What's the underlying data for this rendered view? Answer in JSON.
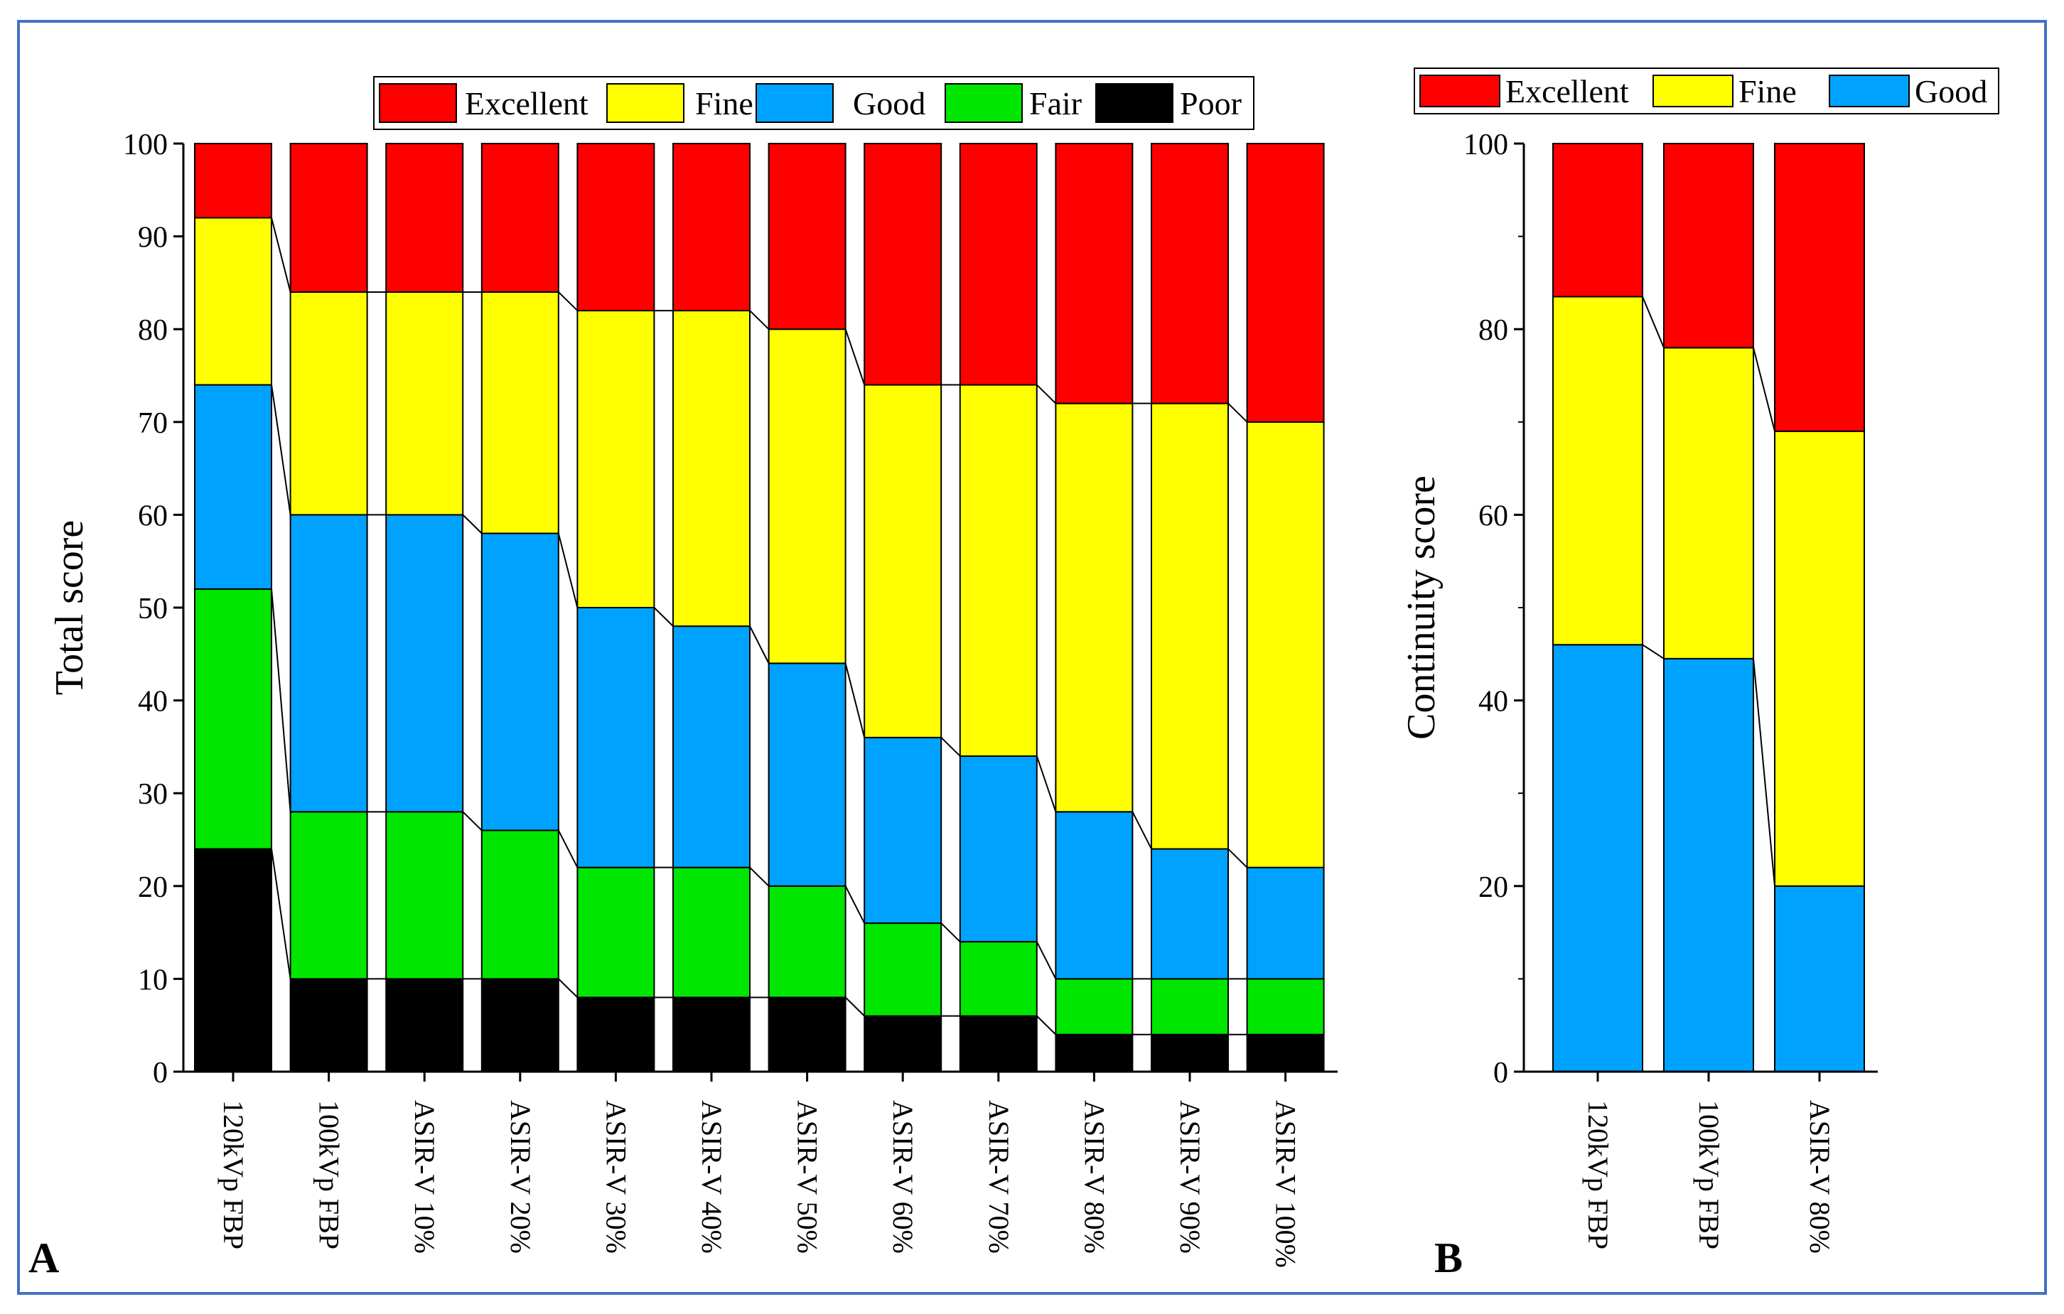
{
  "colors": {
    "Excellent": "#ff0000",
    "Fine": "#ffff00",
    "Good": "#00a2ff",
    "Fair": "#00e600",
    "Poor": "#000000",
    "frame": "#4472c4"
  },
  "chart_data": [
    {
      "type": "bar",
      "stacked": true,
      "panel_label": "A",
      "ylabel": "Total score",
      "xlabel": "",
      "ylim": [
        0,
        100
      ],
      "yticks": [
        0,
        10,
        20,
        30,
        40,
        50,
        60,
        70,
        80,
        90,
        100
      ],
      "legend": [
        "Excellent",
        "Fine",
        "Good",
        "Fair",
        "Poor"
      ],
      "legend_position": "top",
      "categories": [
        "120kVp FBP",
        "100kVp FBP",
        "ASIR-V 10%",
        "ASIR-V 20%",
        "ASIR-V 30%",
        "ASIR-V 40%",
        "ASIR-V 50%",
        "ASIR-V 60%",
        "ASIR-V 70%",
        "ASIR-V 80%",
        "ASIR-V 90%",
        "ASIR-V 100%"
      ],
      "series": [
        {
          "name": "Poor",
          "values": [
            24,
            10,
            10,
            10,
            8,
            8,
            8,
            6,
            6,
            4,
            4,
            4
          ]
        },
        {
          "name": "Fair",
          "values": [
            28,
            18,
            18,
            16,
            14,
            14,
            12,
            10,
            8,
            6,
            6,
            6
          ]
        },
        {
          "name": "Good",
          "values": [
            22,
            32,
            32,
            32,
            28,
            26,
            24,
            20,
            20,
            18,
            14,
            12
          ]
        },
        {
          "name": "Fine",
          "values": [
            18,
            24,
            24,
            26,
            32,
            34,
            36,
            38,
            40,
            44,
            48,
            48
          ]
        },
        {
          "name": "Excellent",
          "values": [
            8,
            16,
            16,
            16,
            18,
            18,
            20,
            26,
            26,
            28,
            28,
            30
          ]
        }
      ]
    },
    {
      "type": "bar",
      "stacked": true,
      "panel_label": "B",
      "ylabel": "Continuity score",
      "xlabel": "",
      "ylim": [
        0,
        100
      ],
      "yticks": [
        0,
        20,
        40,
        60,
        80,
        100
      ],
      "legend": [
        "Excellent",
        "Fine",
        "Good"
      ],
      "legend_position": "top",
      "categories": [
        "120kVp FBP",
        "100kVp FBP",
        "ASIR-V 80%"
      ],
      "series": [
        {
          "name": "Good",
          "values": [
            46,
            44.5,
            20
          ]
        },
        {
          "name": "Fine",
          "values": [
            37.5,
            33.5,
            49
          ]
        },
        {
          "name": "Excellent",
          "values": [
            16.5,
            22,
            31
          ]
        }
      ]
    }
  ]
}
